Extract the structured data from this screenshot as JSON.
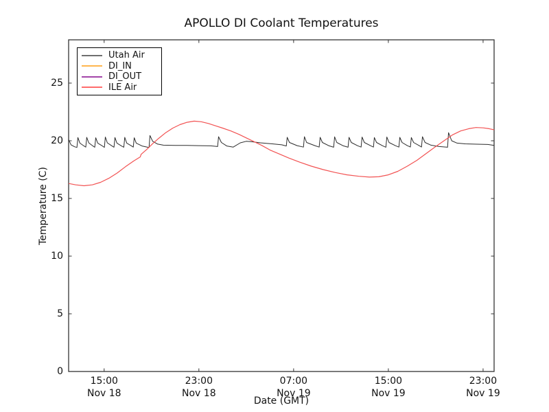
{
  "chart_data": {
    "type": "line",
    "title": "APOLLO DI Coolant Temperatures",
    "xlabel": "Date (GMT)",
    "ylabel": "Temperature (C)",
    "x_unit": "hours since Nov 18 00:00 GMT",
    "xlim": [
      12,
      47.93
    ],
    "ylim": [
      0,
      28.75
    ],
    "grid": false,
    "legend_position": "upper left",
    "y_ticks": [
      0,
      5,
      10,
      15,
      20,
      25
    ],
    "x_ticks": [
      {
        "hour": 15,
        "time": "15:00",
        "date": "Nov 18"
      },
      {
        "hour": 23,
        "time": "23:00",
        "date": "Nov 18"
      },
      {
        "hour": 31,
        "time": "07:00",
        "date": "Nov 19"
      },
      {
        "hour": 39,
        "time": "15:00",
        "date": "Nov 19"
      },
      {
        "hour": 47,
        "time": "23:00",
        "date": "Nov 19"
      }
    ],
    "series": [
      {
        "name": "Utah Air",
        "color": "#2b2b2b",
        "legend_color": "#6e6e6e",
        "width": 1,
        "points": [
          [
            12.0,
            20.1
          ],
          [
            12.2,
            19.65
          ],
          [
            12.5,
            19.48
          ],
          [
            12.7,
            19.42
          ],
          [
            12.78,
            20.28
          ],
          [
            12.95,
            19.8
          ],
          [
            13.3,
            19.55
          ],
          [
            13.45,
            19.45
          ],
          [
            13.53,
            20.3
          ],
          [
            13.7,
            19.82
          ],
          [
            14.05,
            19.55
          ],
          [
            14.21,
            19.44
          ],
          [
            14.29,
            20.26
          ],
          [
            14.46,
            19.8
          ],
          [
            14.85,
            19.55
          ],
          [
            15.02,
            19.43
          ],
          [
            15.1,
            20.32
          ],
          [
            15.27,
            19.82
          ],
          [
            15.65,
            19.56
          ],
          [
            15.83,
            19.44
          ],
          [
            15.91,
            20.28
          ],
          [
            16.08,
            19.8
          ],
          [
            16.45,
            19.56
          ],
          [
            16.66,
            19.44
          ],
          [
            16.74,
            20.3
          ],
          [
            16.91,
            19.8
          ],
          [
            17.3,
            19.56
          ],
          [
            17.46,
            19.45
          ],
          [
            17.54,
            20.26
          ],
          [
            17.71,
            19.8
          ],
          [
            18.2,
            19.55
          ],
          [
            18.6,
            19.46
          ],
          [
            18.79,
            19.42
          ],
          [
            18.87,
            20.45
          ],
          [
            19.1,
            19.95
          ],
          [
            19.5,
            19.72
          ],
          [
            20.0,
            19.62
          ],
          [
            21.0,
            19.6
          ],
          [
            22.0,
            19.6
          ],
          [
            23.0,
            19.58
          ],
          [
            24.0,
            19.56
          ],
          [
            24.58,
            19.5
          ],
          [
            24.66,
            20.35
          ],
          [
            24.9,
            19.85
          ],
          [
            25.35,
            19.55
          ],
          [
            25.9,
            19.45
          ],
          [
            26.5,
            19.82
          ],
          [
            27.0,
            19.95
          ],
          [
            27.4,
            19.92
          ],
          [
            28.2,
            19.82
          ],
          [
            29.2,
            19.73
          ],
          [
            30.0,
            19.65
          ],
          [
            30.38,
            19.55
          ],
          [
            30.46,
            20.3
          ],
          [
            30.65,
            19.85
          ],
          [
            31.3,
            19.58
          ],
          [
            31.83,
            19.45
          ],
          [
            31.91,
            20.35
          ],
          [
            32.1,
            19.85
          ],
          [
            32.8,
            19.58
          ],
          [
            33.16,
            19.45
          ],
          [
            33.24,
            20.3
          ],
          [
            33.43,
            19.85
          ],
          [
            34.0,
            19.56
          ],
          [
            34.38,
            19.44
          ],
          [
            34.46,
            20.34
          ],
          [
            34.65,
            19.85
          ],
          [
            35.2,
            19.56
          ],
          [
            35.6,
            19.44
          ],
          [
            35.68,
            20.3
          ],
          [
            35.87,
            19.85
          ],
          [
            36.4,
            19.57
          ],
          [
            36.7,
            19.45
          ],
          [
            36.78,
            20.32
          ],
          [
            36.97,
            19.85
          ],
          [
            37.5,
            19.57
          ],
          [
            37.74,
            19.45
          ],
          [
            37.82,
            20.28
          ],
          [
            38.0,
            19.85
          ],
          [
            38.5,
            19.57
          ],
          [
            38.79,
            19.44
          ],
          [
            38.87,
            20.33
          ],
          [
            39.06,
            19.85
          ],
          [
            39.6,
            19.57
          ],
          [
            39.89,
            19.45
          ],
          [
            39.97,
            20.3
          ],
          [
            40.16,
            19.85
          ],
          [
            40.6,
            19.58
          ],
          [
            40.86,
            19.46
          ],
          [
            40.94,
            20.28
          ],
          [
            41.13,
            19.85
          ],
          [
            41.6,
            19.58
          ],
          [
            41.8,
            19.46
          ],
          [
            41.88,
            20.35
          ],
          [
            42.1,
            19.85
          ],
          [
            42.6,
            19.62
          ],
          [
            43.3,
            19.5
          ],
          [
            44.0,
            19.44
          ],
          [
            44.08,
            20.7
          ],
          [
            44.35,
            20.0
          ],
          [
            44.8,
            19.8
          ],
          [
            45.5,
            19.73
          ],
          [
            46.5,
            19.7
          ],
          [
            47.4,
            19.68
          ],
          [
            47.93,
            19.6
          ]
        ]
      },
      {
        "name": "DI_IN",
        "color": "#ffa733",
        "legend_color": "#ffb54d",
        "width": 1,
        "points": []
      },
      {
        "name": "DI_OUT",
        "color": "#993399",
        "legend_color": "#a344a8",
        "width": 1,
        "points": []
      },
      {
        "name": "ILE Air",
        "color": "#f25252",
        "legend_color": "#ff6b6b",
        "width": 1.2,
        "points": [
          [
            12.0,
            16.3
          ],
          [
            12.6,
            16.18
          ],
          [
            13.3,
            16.1
          ],
          [
            14.0,
            16.18
          ],
          [
            14.7,
            16.4
          ],
          [
            15.4,
            16.75
          ],
          [
            16.1,
            17.2
          ],
          [
            16.8,
            17.75
          ],
          [
            17.5,
            18.25
          ],
          [
            18.05,
            18.6
          ],
          [
            18.12,
            18.82
          ],
          [
            18.6,
            19.25
          ],
          [
            19.1,
            19.75
          ],
          [
            19.6,
            20.2
          ],
          [
            20.2,
            20.7
          ],
          [
            20.8,
            21.1
          ],
          [
            21.4,
            21.4
          ],
          [
            22.0,
            21.6
          ],
          [
            22.6,
            21.7
          ],
          [
            23.2,
            21.65
          ],
          [
            23.8,
            21.5
          ],
          [
            24.4,
            21.3
          ],
          [
            25.0,
            21.1
          ],
          [
            25.7,
            20.85
          ],
          [
            26.4,
            20.55
          ],
          [
            27.0,
            20.25
          ],
          [
            27.6,
            19.95
          ],
          [
            28.3,
            19.6
          ],
          [
            29.0,
            19.2
          ],
          [
            29.8,
            18.85
          ],
          [
            30.6,
            18.5
          ],
          [
            31.5,
            18.15
          ],
          [
            32.5,
            17.8
          ],
          [
            33.5,
            17.5
          ],
          [
            34.5,
            17.25
          ],
          [
            35.5,
            17.05
          ],
          [
            36.5,
            16.92
          ],
          [
            37.4,
            16.85
          ],
          [
            38.2,
            16.88
          ],
          [
            39.0,
            17.05
          ],
          [
            39.8,
            17.35
          ],
          [
            40.6,
            17.8
          ],
          [
            41.4,
            18.3
          ],
          [
            42.2,
            18.9
          ],
          [
            43.0,
            19.5
          ],
          [
            43.7,
            20.0
          ],
          [
            44.4,
            20.5
          ],
          [
            45.1,
            20.85
          ],
          [
            45.8,
            21.05
          ],
          [
            46.4,
            21.15
          ],
          [
            47.0,
            21.12
          ],
          [
            47.5,
            21.05
          ],
          [
            47.93,
            20.95
          ]
        ]
      }
    ],
    "axis_color": "#333333"
  }
}
